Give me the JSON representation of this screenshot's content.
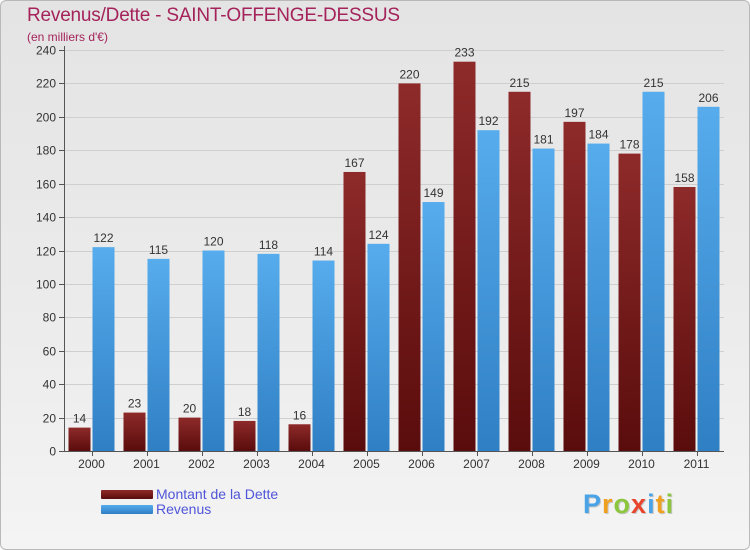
{
  "header": {
    "title": "Revenus/Dette - SAINT-OFFENGE-DESSUS",
    "subtitle": "(en milliers d'€)"
  },
  "colors": {
    "title": "#a4235a",
    "dette": "#7a1a1a",
    "revenus": "#4aa3e6",
    "legend_text": "#4f55d8"
  },
  "chart_data": {
    "type": "bar",
    "title": "Revenus/Dette - SAINT-OFFENGE-DESSUS",
    "subtitle": "(en milliers d'€)",
    "categories": [
      "2000",
      "2001",
      "2002",
      "2003",
      "2004",
      "2005",
      "2006",
      "2007",
      "2008",
      "2009",
      "2010",
      "2011"
    ],
    "series": [
      {
        "name": "Montant de la Dette",
        "values": [
          14,
          23,
          20,
          18,
          16,
          167,
          220,
          233,
          215,
          197,
          178,
          158
        ]
      },
      {
        "name": "Revenus",
        "values": [
          122,
          115,
          120,
          118,
          114,
          124,
          149,
          192,
          181,
          184,
          215,
          206
        ]
      }
    ],
    "ylim": [
      0,
      240
    ],
    "yticks": [
      0,
      20,
      40,
      60,
      80,
      100,
      120,
      140,
      160,
      180,
      200,
      220,
      240
    ],
    "grid": true,
    "legend_position": "bottom-left"
  },
  "legend": {
    "items": [
      {
        "label": "Montant de la Dette",
        "color": "#7a1a1a"
      },
      {
        "label": "Revenus",
        "color": "#4aa3e6"
      }
    ]
  },
  "logo": {
    "letters": [
      {
        "ch": "P",
        "color": "#4aa3e6"
      },
      {
        "ch": "r",
        "color": "#f0a020"
      },
      {
        "ch": "o",
        "color": "#8cc63f"
      },
      {
        "ch": "x",
        "color": "#e8452c"
      },
      {
        "ch": "i",
        "color": "#4aa3e6"
      },
      {
        "ch": "t",
        "color": "#f0a020"
      },
      {
        "ch": "i",
        "color": "#8cc63f"
      }
    ]
  }
}
